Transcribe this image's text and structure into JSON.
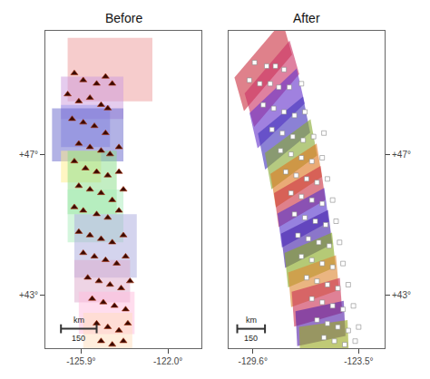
{
  "chart_data": [
    {
      "type": "scatter",
      "title": "Before",
      "x": [
        -126.2,
        -125.8,
        -125.2,
        -124.8,
        -124.5,
        -126.5,
        -126.0,
        -125.5,
        -125.0,
        -124.7,
        -126.3,
        -125.8,
        -125.3,
        -124.8,
        -126.0,
        -125.5,
        -125.0,
        -124.6,
        -124.2,
        -126.2,
        -125.7,
        -125.2,
        -124.7,
        -124.2,
        -126.0,
        -125.5,
        -125.0,
        -124.5,
        -124.0,
        -126.2,
        -125.8,
        -125.2,
        -124.7,
        -124.2,
        -126.0,
        -125.5,
        -125.0,
        -124.5,
        -124.0,
        -125.8,
        -125.3,
        -124.8,
        -124.3,
        -123.9,
        -125.6,
        -125.1,
        -124.6,
        -124.1,
        -123.7,
        -125.4,
        -124.9,
        -124.4,
        -123.9,
        -125.2,
        -124.7,
        -124.2,
        -123.8,
        -125.0,
        -124.5,
        -124.0
      ],
      "values": [
        49.3,
        49.1,
        49.0,
        49.2,
        49.0,
        48.7,
        48.5,
        48.6,
        48.4,
        48.3,
        48.0,
        47.9,
        47.8,
        47.6,
        47.3,
        47.2,
        47.1,
        47.0,
        47.2,
        46.8,
        46.6,
        46.5,
        46.4,
        46.5,
        46.1,
        46.0,
        45.9,
        45.7,
        46.0,
        45.5,
        45.4,
        45.3,
        45.2,
        45.4,
        44.8,
        44.7,
        44.6,
        44.5,
        44.7,
        44.2,
        44.1,
        44.0,
        43.9,
        44.1,
        43.5,
        43.4,
        43.3,
        43.2,
        43.4,
        42.9,
        42.8,
        42.7,
        42.6,
        42.2,
        42.1,
        42.0,
        42.2,
        41.7,
        41.6,
        41.7
      ],
      "marker": "triangle",
      "color": "#3a0a00",
      "xlim": [
        -127.5,
        -120.5
      ],
      "ylim": [
        41.5,
        50.5
      ],
      "xticks": [
        {
          "value": -125.9,
          "label": "-125.9°"
        },
        {
          "value": -122.0,
          "label": "-122.0°"
        }
      ],
      "yticks": [
        {
          "value": 43,
          "label": "+43°"
        },
        {
          "value": 47,
          "label": "+47°"
        }
      ],
      "grid": false,
      "rects": [
        {
          "x": -126.5,
          "y": 48.5,
          "w": 3.8,
          "h": 1.8,
          "color": "#ee9999"
        },
        {
          "x": -126.8,
          "y": 48.0,
          "w": 2.8,
          "h": 1.2,
          "color": "#cc99dd"
        },
        {
          "x": -126.8,
          "y": 47.2,
          "w": 2.2,
          "h": 1.2,
          "color": "#9999ee"
        },
        {
          "x": -127.2,
          "y": 46.8,
          "w": 3.2,
          "h": 1.5,
          "color": "#6666cc"
        },
        {
          "x": -126.8,
          "y": 46.2,
          "w": 1.8,
          "h": 0.9,
          "color": "#ffee88"
        },
        {
          "x": -126.5,
          "y": 45.3,
          "w": 2.2,
          "h": 1.8,
          "color": "#88dd88"
        },
        {
          "x": -126.5,
          "y": 44.5,
          "w": 2.5,
          "h": 1.5,
          "color": "#aaeebb"
        },
        {
          "x": -126.2,
          "y": 43.5,
          "w": 2.8,
          "h": 1.8,
          "color": "#aaaadd"
        },
        {
          "x": -126.2,
          "y": 42.8,
          "w": 2.5,
          "h": 1.2,
          "color": "#ddaacc"
        },
        {
          "x": -126.0,
          "y": 41.9,
          "w": 2.5,
          "h": 1.2,
          "color": "#ffbbdd"
        },
        {
          "x": -125.8,
          "y": 41.5,
          "w": 2.2,
          "h": 1.0,
          "color": "#ffddbb"
        }
      ],
      "scale_bar": {
        "x": [
          -126.8,
          -125.2
        ],
        "y": 42.05,
        "label_above": "km",
        "label_below": "150"
      }
    },
    {
      "type": "scatter",
      "title": "After",
      "x": [
        -129.5,
        -128.8,
        -128.3,
        -127.8,
        -129.8,
        -129.2,
        -128.6,
        -128.1,
        -127.5,
        -126.8,
        -129.0,
        -128.4,
        -127.8,
        -127.2,
        -126.6,
        -128.5,
        -127.9,
        -127.3,
        -126.7,
        -126.1,
        -125.5,
        -128.0,
        -127.4,
        -126.8,
        -126.2,
        -125.6,
        -127.7,
        -127.1,
        -126.5,
        -125.9,
        -125.3,
        -127.4,
        -126.8,
        -126.2,
        -125.6,
        -125.0,
        -127.2,
        -126.6,
        -126.0,
        -125.4,
        -124.8,
        -127.0,
        -126.4,
        -125.8,
        -125.2,
        -124.6,
        -126.8,
        -126.2,
        -125.6,
        -125.0,
        -124.4,
        -126.5,
        -125.9,
        -125.3,
        -124.7,
        -124.1,
        -126.2,
        -125.6,
        -125.0,
        -124.4,
        -123.8,
        -125.9,
        -125.3,
        -124.7,
        -124.1,
        -123.5,
        -125.5,
        -124.9,
        -124.3,
        -123.7
      ],
      "values": [
        49.6,
        49.5,
        49.5,
        49.4,
        49.1,
        49.0,
        49.0,
        48.9,
        48.9,
        49.0,
        48.4,
        48.3,
        48.2,
        48.1,
        48.2,
        47.7,
        47.6,
        47.5,
        47.4,
        47.5,
        47.6,
        47.1,
        47.0,
        46.9,
        46.8,
        46.9,
        46.5,
        46.4,
        46.3,
        46.2,
        46.3,
        45.9,
        45.8,
        45.7,
        45.6,
        45.7,
        45.3,
        45.2,
        45.1,
        45.0,
        45.1,
        44.7,
        44.6,
        44.5,
        44.4,
        44.5,
        44.1,
        44.0,
        43.9,
        43.8,
        43.9,
        43.5,
        43.4,
        43.3,
        43.2,
        43.3,
        42.9,
        42.8,
        42.7,
        42.6,
        42.7,
        42.3,
        42.2,
        42.1,
        42.0,
        42.1,
        41.8,
        41.7,
        41.6,
        41.7
      ],
      "marker": "square",
      "color": "#ffffff",
      "xlim": [
        -131.0,
        -122.0
      ],
      "ylim": [
        41.5,
        50.5
      ],
      "xticks": [
        {
          "value": -129.6,
          "label": "-129.6°"
        },
        {
          "value": -123.5,
          "label": "-123.5°"
        }
      ],
      "yticks": [
        {
          "value": 43,
          "label": "+43°"
        },
        {
          "value": 47,
          "label": "+47°"
        }
      ],
      "grid": false,
      "segments": [
        {
          "cx": -129.0,
          "cy": 49.5,
          "w": 3.2,
          "h": 1.1,
          "angle": 30,
          "color": "#cc3344"
        },
        {
          "cx": -128.5,
          "cy": 49.0,
          "w": 3.0,
          "h": 1.1,
          "angle": 30,
          "color": "#cc3366"
        },
        {
          "cx": -128.2,
          "cy": 48.3,
          "w": 3.0,
          "h": 1.1,
          "angle": 25,
          "color": "#6633cc"
        },
        {
          "cx": -127.8,
          "cy": 47.6,
          "w": 2.8,
          "h": 1.1,
          "angle": 22,
          "color": "#4433bb"
        },
        {
          "cx": -127.4,
          "cy": 47.0,
          "w": 2.8,
          "h": 1.1,
          "angle": 20,
          "color": "#88aa33"
        },
        {
          "cx": -127.1,
          "cy": 46.4,
          "w": 2.8,
          "h": 1.0,
          "angle": 18,
          "color": "#dd7722"
        },
        {
          "cx": -126.9,
          "cy": 45.8,
          "w": 2.8,
          "h": 1.0,
          "angle": 16,
          "color": "#cc3344"
        },
        {
          "cx": -126.7,
          "cy": 45.2,
          "w": 2.8,
          "h": 1.0,
          "angle": 15,
          "color": "#5533cc"
        },
        {
          "cx": -126.5,
          "cy": 44.6,
          "w": 2.8,
          "h": 1.0,
          "angle": 14,
          "color": "#4422aa"
        },
        {
          "cx": -126.3,
          "cy": 44.0,
          "w": 2.8,
          "h": 1.0,
          "angle": 12,
          "color": "#88aa22"
        },
        {
          "cx": -126.1,
          "cy": 43.4,
          "w": 2.8,
          "h": 1.0,
          "angle": 10,
          "color": "#dd8833"
        },
        {
          "cx": -125.9,
          "cy": 42.8,
          "w": 2.8,
          "h": 1.0,
          "angle": 8,
          "color": "#cc3355"
        },
        {
          "cx": -125.7,
          "cy": 42.2,
          "w": 2.8,
          "h": 1.0,
          "angle": 6,
          "color": "#5522aa"
        },
        {
          "cx": -125.5,
          "cy": 41.7,
          "w": 2.8,
          "h": 1.0,
          "angle": 4,
          "color": "#99aa22"
        }
      ],
      "scale_bar": {
        "x": [
          -130.5,
          -128.9
        ],
        "y": 42.05,
        "label_above": "km",
        "label_below": "150"
      }
    }
  ]
}
